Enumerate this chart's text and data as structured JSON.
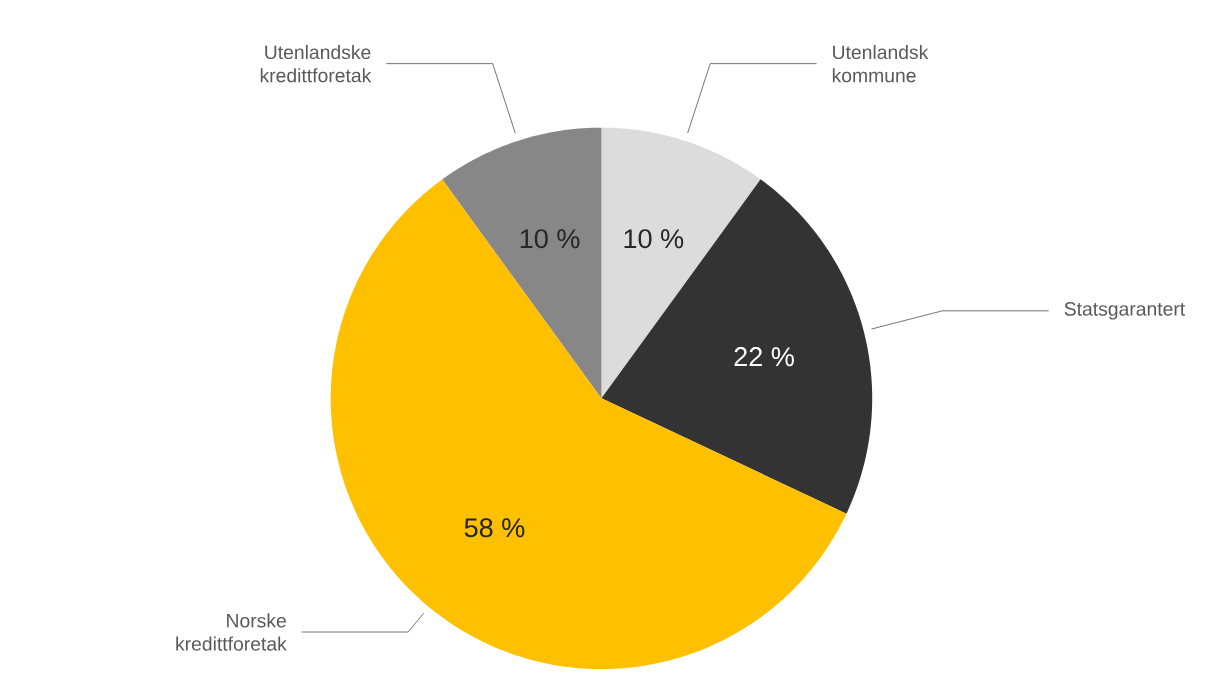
{
  "chart_data": {
    "type": "pie",
    "categories": [
      "Utenlandsk kommune",
      "Statsgarantert",
      "Norske kredittforetak",
      "Utenlandske kredittforetak"
    ],
    "values": [
      10,
      22,
      58,
      10
    ],
    "colors": [
      "#dcdcdc",
      "#333333",
      "#ffc000",
      "#878787"
    ],
    "value_labels": [
      "10 %",
      "22 %",
      "58 %",
      "10 %"
    ]
  }
}
